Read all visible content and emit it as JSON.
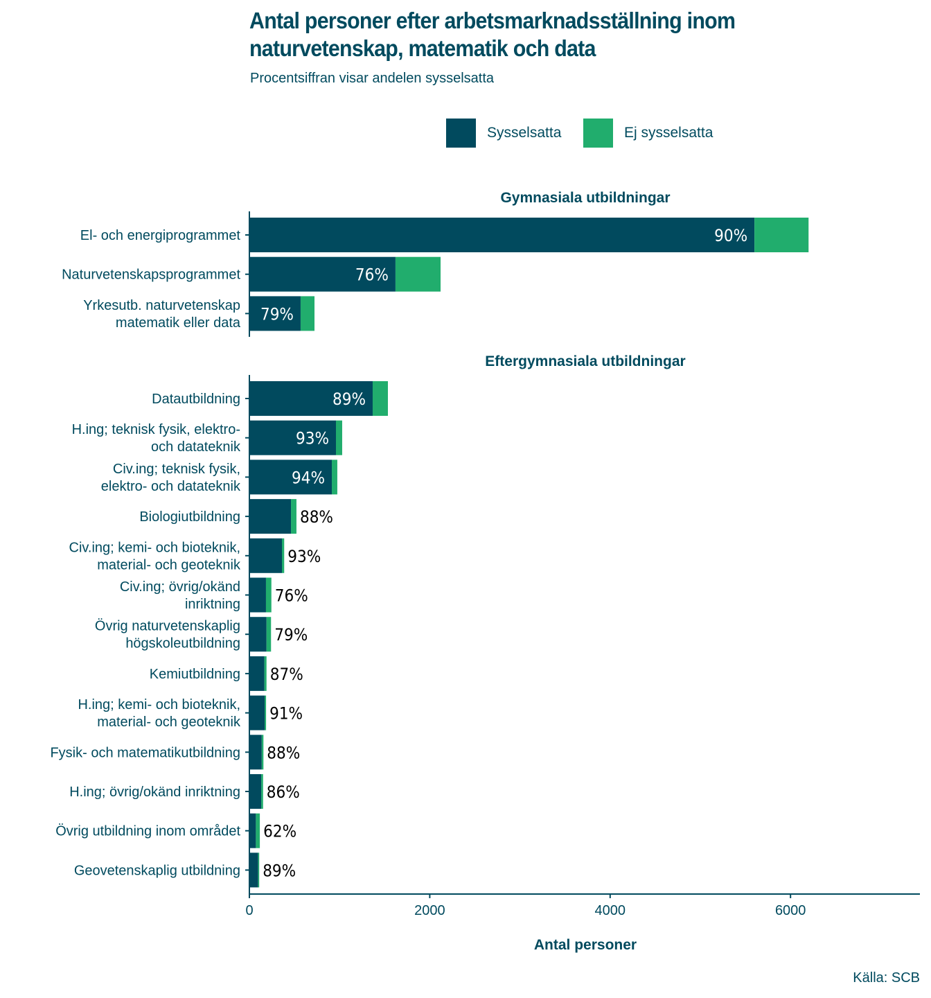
{
  "title": "Antal personer efter arbetsmarknadsställning inom naturvetenskap, matematik och data",
  "subtitle": "Procentsiffran visar andelen sysselsatta",
  "source": "Källa: SCB",
  "colors": {
    "employed": "#014a5e",
    "not_employed": "#21ad6d",
    "text": "#004a5e"
  },
  "chart_data": {
    "type": "bar",
    "orientation": "horizontal",
    "stacked": true,
    "title": "Antal personer efter arbetsmarknadsställning inom naturvetenskap, matematik och data",
    "subtitle": "Procentsiffran visar andelen sysselsatta",
    "xlabel": "Antal personer",
    "ylabel": "",
    "xlim": [
      0,
      7450
    ],
    "x_ticks": [
      0,
      2000,
      4000,
      6000
    ],
    "x_tick_labels": [
      "0",
      "2000",
      "4000",
      "6000"
    ],
    "legend": {
      "position": "top",
      "entries": [
        "Sysselsatta",
        "Ej sysselsatta"
      ]
    },
    "grid": false,
    "facets": [
      {
        "title": "Gymnasiala utbildningar",
        "rows": [
          {
            "label": [
              "El- och energiprogrammet"
            ],
            "sysselsatta": 5600,
            "ej_sysselsatta": 600,
            "pct_label": "90%"
          },
          {
            "label": [
              "Naturvetenskapsprogrammet"
            ],
            "sysselsatta": 1620,
            "ej_sysselsatta": 500,
            "pct_label": "76%"
          },
          {
            "label": [
              "Yrkesutb. naturvetenskap",
              "matematik eller data"
            ],
            "sysselsatta": 568,
            "ej_sysselsatta": 154,
            "pct_label": "79%"
          }
        ]
      },
      {
        "title": "Eftergymnasiala utbildningar",
        "rows": [
          {
            "label": [
              "Datautbildning"
            ],
            "sysselsatta": 1367,
            "ej_sysselsatta": 169,
            "pct_label": "89%"
          },
          {
            "label": [
              "H.ing; teknisk fysik, elektro-",
              "och datateknik"
            ],
            "sysselsatta": 960,
            "ej_sysselsatta": 69,
            "pct_label": "93%"
          },
          {
            "label": [
              "Civ.ing; teknisk fysik,",
              "elektro- och datateknik"
            ],
            "sysselsatta": 914,
            "ej_sysselsatta": 61,
            "pct_label": "94%"
          },
          {
            "label": [
              "Biologiutbildning"
            ],
            "sysselsatta": 461,
            "ej_sysselsatta": 61,
            "pct_label": "88%"
          },
          {
            "label": [
              "Civ.ing; kemi- och bioteknik,",
              "material- och geoteknik"
            ],
            "sysselsatta": 361,
            "ej_sysselsatta": 25,
            "pct_label": "93%"
          },
          {
            "label": [
              "Civ.ing; övrig/okänd",
              "inriktning"
            ],
            "sysselsatta": 184,
            "ej_sysselsatta": 60,
            "pct_label": "76%"
          },
          {
            "label": [
              "Övrig naturvetenskaplig",
              "högskoleutbildning"
            ],
            "sysselsatta": 190,
            "ej_sysselsatta": 50,
            "pct_label": "79%"
          },
          {
            "label": [
              "Kemiutbildning"
            ],
            "sysselsatta": 166,
            "ej_sysselsatta": 24,
            "pct_label": "87%"
          },
          {
            "label": [
              "H.ing; kemi- och bioteknik,",
              "material- och geoteknik"
            ],
            "sysselsatta": 169,
            "ej_sysselsatta": 16,
            "pct_label": "91%"
          },
          {
            "label": [
              "Fysik- och matematikutbildning"
            ],
            "sysselsatta": 137,
            "ej_sysselsatta": 19,
            "pct_label": "88%"
          },
          {
            "label": [
              "H.ing; övrig/okänd inriktning"
            ],
            "sysselsatta": 131,
            "ej_sysselsatta": 21,
            "pct_label": "86%"
          },
          {
            "label": [
              "Övrig utbildning inom området"
            ],
            "sysselsatta": 72,
            "ej_sysselsatta": 44,
            "pct_label": "62%"
          },
          {
            "label": [
              "Geovetenskaplig utbildning"
            ],
            "sysselsatta": 97,
            "ej_sysselsatta": 12,
            "pct_label": "89%"
          }
        ]
      }
    ]
  }
}
